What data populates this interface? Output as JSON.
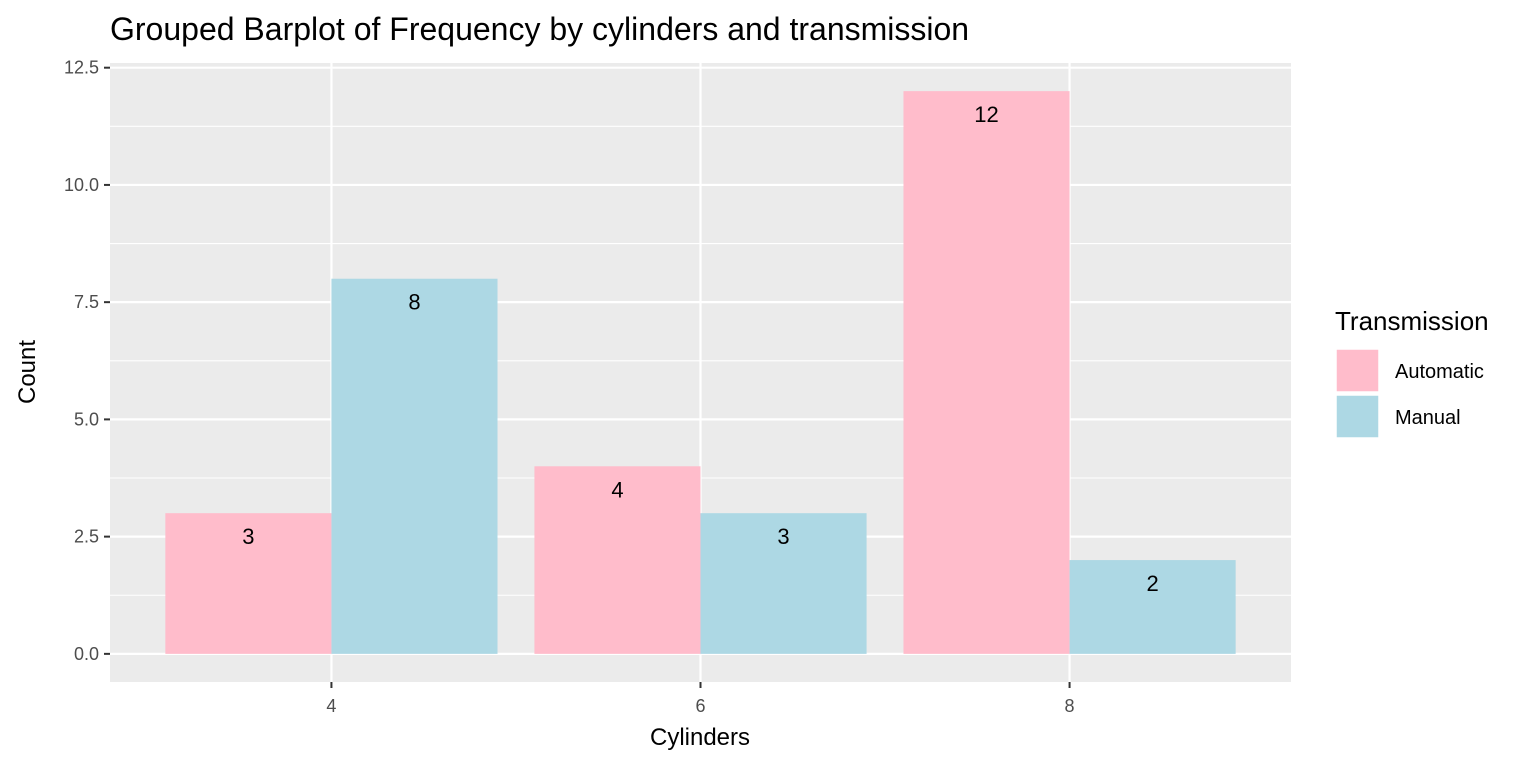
{
  "chart_data": {
    "type": "bar",
    "title": "Grouped Barplot of Frequency by cylinders and transmission",
    "xlabel": "Cylinders",
    "ylabel": "Count",
    "categories": [
      "4",
      "6",
      "8"
    ],
    "series": [
      {
        "name": "Automatic",
        "values": [
          3,
          4,
          12
        ],
        "color": "#FFBCCB"
      },
      {
        "name": "Manual",
        "values": [
          8,
          3,
          2
        ],
        "color": "#ADD8E4"
      }
    ],
    "ylim": [
      -0.6,
      12.6
    ],
    "yticks": [
      0.0,
      2.5,
      5.0,
      7.5,
      10.0,
      12.5
    ],
    "ytick_labels": [
      "0.0",
      "2.5",
      "5.0",
      "7.5",
      "10.0",
      "12.5"
    ],
    "xlim": [
      2.8,
      9.2
    ],
    "x_positions": [
      4,
      6,
      8
    ],
    "legend": {
      "title": "Transmission",
      "position": "right"
    },
    "grid": true,
    "panel_background": "#EBEBEB",
    "grid_color": "#FFFFFF"
  }
}
